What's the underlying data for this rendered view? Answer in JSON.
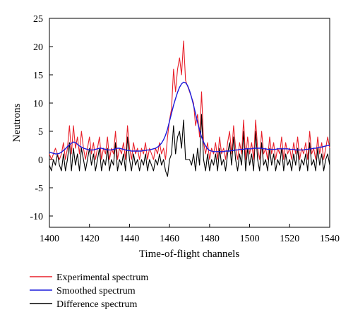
{
  "chart_data": {
    "type": "line",
    "xlabel": "Time-of-flight channels",
    "ylabel": "Neutrons",
    "xlim": [
      1400,
      1540
    ],
    "ylim": [
      -12,
      25
    ],
    "xticks": [
      1400,
      1420,
      1440,
      1460,
      1480,
      1500,
      1520,
      1540
    ],
    "yticks": [
      -10,
      -5,
      0,
      5,
      10,
      15,
      20,
      25
    ],
    "grid": false,
    "legend_position": "bottom-left below plot",
    "x": [
      1400,
      1401,
      1402,
      1403,
      1404,
      1405,
      1406,
      1407,
      1408,
      1409,
      1410,
      1411,
      1412,
      1413,
      1414,
      1415,
      1416,
      1417,
      1418,
      1419,
      1420,
      1421,
      1422,
      1423,
      1424,
      1425,
      1426,
      1427,
      1428,
      1429,
      1430,
      1431,
      1432,
      1433,
      1434,
      1435,
      1436,
      1437,
      1438,
      1439,
      1440,
      1441,
      1442,
      1443,
      1444,
      1445,
      1446,
      1447,
      1448,
      1449,
      1450,
      1451,
      1452,
      1453,
      1454,
      1455,
      1456,
      1457,
      1458,
      1459,
      1460,
      1461,
      1462,
      1463,
      1464,
      1465,
      1466,
      1467,
      1468,
      1469,
      1470,
      1471,
      1472,
      1473,
      1474,
      1475,
      1476,
      1477,
      1478,
      1479,
      1480,
      1481,
      1482,
      1483,
      1484,
      1485,
      1486,
      1487,
      1488,
      1489,
      1490,
      1491,
      1492,
      1493,
      1494,
      1495,
      1496,
      1497,
      1498,
      1499,
      1500,
      1501,
      1502,
      1503,
      1504,
      1505,
      1506,
      1507,
      1508,
      1509,
      1510,
      1511,
      1512,
      1513,
      1514,
      1515,
      1516,
      1517,
      1518,
      1519,
      1520,
      1521,
      1522,
      1523,
      1524,
      1525,
      1526,
      1527,
      1528,
      1529,
      1530,
      1531,
      1532,
      1533,
      1534,
      1535,
      1536,
      1537,
      1538,
      1539,
      1540
    ],
    "series": [
      {
        "name": "Experimental spectrum",
        "color": "#e8202a",
        "values": [
          1,
          0,
          1,
          2,
          1,
          0,
          1,
          3,
          0,
          2,
          6,
          1,
          6,
          2,
          4,
          1,
          5,
          2,
          0,
          2,
          4,
          1,
          3,
          0,
          2,
          4,
          0,
          2,
          1,
          4,
          0,
          2,
          1,
          5,
          0,
          2,
          1,
          3,
          0,
          6,
          2,
          0,
          3,
          1,
          2,
          0,
          2,
          1,
          3,
          0,
          2,
          1,
          0,
          2,
          1,
          3,
          1,
          2,
          0,
          4,
          7,
          9,
          16,
          12,
          16,
          18,
          15,
          21,
          14,
          13,
          12,
          11,
          10,
          6,
          8,
          4,
          12,
          3,
          1,
          3,
          0,
          2,
          1,
          3,
          0,
          4,
          1,
          2,
          0,
          3,
          5,
          1,
          6,
          2,
          0,
          3,
          1,
          7,
          0,
          4,
          1,
          3,
          0,
          7,
          2,
          0,
          5,
          1,
          2,
          0,
          4,
          1,
          3,
          0,
          2,
          1,
          4,
          0,
          3,
          1,
          2,
          0,
          3,
          1,
          4,
          0,
          2,
          1,
          3,
          0,
          5,
          1,
          2,
          0,
          4,
          1,
          3,
          0,
          2,
          4,
          2
        ]
      },
      {
        "name": "Smoothed spectrum",
        "color": "#1a1adb",
        "values": [
          1.3,
          1.2,
          1.1,
          1.0,
          1.0,
          1.1,
          1.3,
          1.6,
          1.9,
          2.3,
          2.6,
          2.9,
          3.1,
          3.0,
          2.7,
          2.4,
          2.2,
          2.0,
          1.9,
          1.8,
          1.7,
          1.7,
          1.7,
          1.8,
          1.9,
          2.0,
          2.0,
          1.9,
          1.8,
          1.7,
          1.7,
          1.7,
          1.8,
          1.9,
          2.0,
          2.0,
          1.9,
          1.8,
          1.7,
          1.6,
          1.6,
          1.5,
          1.5,
          1.5,
          1.5,
          1.5,
          1.5,
          1.6,
          1.6,
          1.7,
          1.7,
          1.8,
          1.9,
          2.0,
          2.2,
          2.5,
          2.9,
          3.5,
          4.3,
          5.4,
          6.8,
          8.2,
          9.6,
          10.8,
          11.9,
          12.8,
          13.4,
          13.7,
          13.6,
          13.1,
          12.2,
          11.0,
          9.6,
          8.1,
          6.6,
          5.2,
          4.0,
          3.1,
          2.4,
          1.9,
          1.6,
          1.5,
          1.4,
          1.4,
          1.4,
          1.4,
          1.4,
          1.4,
          1.5,
          1.5,
          1.5,
          1.6,
          1.6,
          1.7,
          1.7,
          1.8,
          1.8,
          1.8,
          1.9,
          1.9,
          1.9,
          1.9,
          2.0,
          2.0,
          2.0,
          2.0,
          2.0,
          1.9,
          1.9,
          1.8,
          1.8,
          1.8,
          1.8,
          1.8,
          1.9,
          1.9,
          1.9,
          1.9,
          1.9,
          1.9,
          1.8,
          1.8,
          1.8,
          1.7,
          1.7,
          1.7,
          1.7,
          1.7,
          1.8,
          1.8,
          1.9,
          1.9,
          2.0,
          2.0,
          2.1,
          2.2,
          2.2,
          2.3,
          2.4,
          2.5,
          2.5
        ]
      },
      {
        "name": "Difference spectrum",
        "color": "#000000",
        "values": [
          -1,
          -2,
          0,
          -1,
          1,
          -1,
          -2,
          1,
          -2,
          0,
          3,
          -2,
          2,
          -1,
          1,
          -2,
          2,
          0,
          -2,
          0,
          2,
          -1,
          1,
          -2,
          0,
          2,
          -2,
          0,
          -1,
          2,
          -2,
          0,
          -1,
          3,
          -2,
          0,
          -1,
          1,
          -2,
          4,
          0,
          -2,
          1,
          -1,
          0,
          -2,
          0,
          -1,
          1,
          -2,
          0,
          -1,
          -2,
          0,
          -1,
          1,
          -1,
          0,
          -2,
          -3,
          0,
          1,
          6,
          1,
          4,
          5,
          2,
          7,
          0,
          0,
          0,
          -1,
          1,
          -2,
          2,
          -1,
          8,
          0,
          -2,
          1,
          -2,
          0,
          -1,
          1,
          -2,
          2,
          -1,
          0,
          -2,
          1,
          3,
          -1,
          4,
          0,
          -2,
          1,
          -1,
          5,
          -2,
          2,
          -1,
          1,
          -2,
          5,
          0,
          -2,
          3,
          -1,
          0,
          -2,
          2,
          -1,
          1,
          -2,
          0,
          -1,
          2,
          -2,
          1,
          -1,
          0,
          -2,
          1,
          -1,
          2,
          -2,
          0,
          -1,
          1,
          -2,
          3,
          -1,
          0,
          -2,
          2,
          -1,
          1,
          -2,
          0,
          1,
          -1
        ]
      }
    ]
  }
}
